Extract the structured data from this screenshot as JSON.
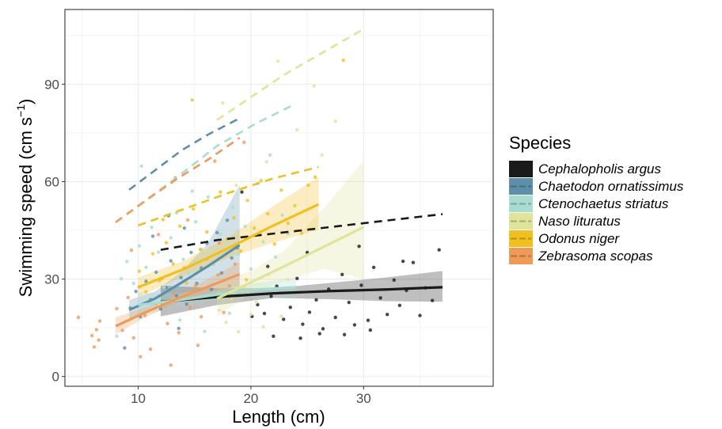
{
  "chart_data": {
    "type": "scatter",
    "xlabel": "Length (cm)",
    "ylabel": "Swimming speed (cm s",
    "ylabel_sup": "−1",
    "ylabel_close": ")",
    "xlim": [
      3.5,
      41.5
    ],
    "ylim": [
      -3,
      113
    ],
    "x_ticks": [
      10,
      20,
      30
    ],
    "y_ticks": [
      0,
      30,
      60,
      90
    ],
    "x_minor": [
      5,
      15,
      25,
      35
    ],
    "y_minor": [
      15,
      45,
      75,
      105
    ],
    "grid": true,
    "legend": {
      "title": "Species",
      "position": "right"
    },
    "series": [
      {
        "name": "Cephalopholis argus",
        "color": "#1a1a1a",
        "solid": [
          [
            12,
            23
          ],
          [
            17,
            24.5
          ],
          [
            22,
            25.6
          ],
          [
            27,
            26.3
          ],
          [
            32,
            26.8
          ],
          [
            37,
            27.5
          ]
        ],
        "band": [
          [
            12,
            18.5,
            28
          ],
          [
            17,
            22,
            27.2
          ],
          [
            22,
            24.2,
            27.2
          ],
          [
            27,
            23.8,
            28.8
          ],
          [
            32,
            23.2,
            30.5
          ],
          [
            37,
            23,
            32.5
          ]
        ],
        "dashed": [
          [
            12,
            39
          ],
          [
            17,
            42
          ],
          [
            22,
            44
          ],
          [
            27,
            46
          ],
          [
            32,
            48
          ],
          [
            37,
            50
          ]
        ],
        "points": [
          [
            20.1,
            18.5
          ],
          [
            20.6,
            22.1
          ],
          [
            21.2,
            19.4
          ],
          [
            21.8,
            24.7
          ],
          [
            22.3,
            27.8
          ],
          [
            22.9,
            17.6
          ],
          [
            23.5,
            21.3
          ],
          [
            24.1,
            30.2
          ],
          [
            24.6,
            16.1
          ],
          [
            25.2,
            19.8
          ],
          [
            25.8,
            23.6
          ],
          [
            26.4,
            14.7
          ],
          [
            26.9,
            26.9
          ],
          [
            27.5,
            18.2
          ],
          [
            28.1,
            31.4
          ],
          [
            28.7,
            22.8
          ],
          [
            29.2,
            15.9
          ],
          [
            29.8,
            28.1
          ],
          [
            30.4,
            17.3
          ],
          [
            30.9,
            33.6
          ],
          [
            31.5,
            24.2
          ],
          [
            32.1,
            19.1
          ],
          [
            32.7,
            29.7
          ],
          [
            33.2,
            21.9
          ],
          [
            33.8,
            26.5
          ],
          [
            34.4,
            35.1
          ],
          [
            35.0,
            18.8
          ],
          [
            35.5,
            27.3
          ],
          [
            36.1,
            23.4
          ],
          [
            36.7,
            39.0
          ],
          [
            22.0,
            12.4
          ],
          [
            24.4,
            11.8
          ],
          [
            26.1,
            13.2
          ],
          [
            28.3,
            12.9
          ],
          [
            30.6,
            14.3
          ],
          [
            19.2,
            56.8
          ],
          [
            21.5,
            33.9
          ],
          [
            25.0,
            38.2
          ],
          [
            29.6,
            40.1
          ],
          [
            33.5,
            35.5
          ]
        ]
      },
      {
        "name": "Chaetodon ornatissimus",
        "color": "#5e8fa8",
        "solid": [
          [
            9.2,
            20.5
          ],
          [
            11.5,
            24
          ],
          [
            13.8,
            28.8
          ],
          [
            16.2,
            34
          ],
          [
            19,
            40.5
          ]
        ],
        "band": [
          [
            9.2,
            17.5,
            23.6
          ],
          [
            11.5,
            21.8,
            26.2
          ],
          [
            13.8,
            25.5,
            32.2
          ],
          [
            16.2,
            27.2,
            41
          ],
          [
            19,
            24,
            59
          ]
        ],
        "dashed": [
          [
            9.2,
            57.5
          ],
          [
            11.5,
            63.5
          ],
          [
            13.8,
            69.5
          ],
          [
            16.2,
            74.5
          ],
          [
            19,
            79.5
          ]
        ],
        "points": [
          [
            9.3,
            21.1
          ],
          [
            9.8,
            26.2
          ],
          [
            10.2,
            18.4
          ],
          [
            10.7,
            29.3
          ],
          [
            11.1,
            23.7
          ],
          [
            11.6,
            32.1
          ],
          [
            12.0,
            20.8
          ],
          [
            12.5,
            27.4
          ],
          [
            12.9,
            35.6
          ],
          [
            13.4,
            24.9
          ],
          [
            13.8,
            30.5
          ],
          [
            14.3,
            22.3
          ],
          [
            14.7,
            38.2
          ],
          [
            15.2,
            28.7
          ],
          [
            15.6,
            33.4
          ],
          [
            16.1,
            41.0
          ],
          [
            16.5,
            26.8
          ],
          [
            17.0,
            44.3
          ],
          [
            17.4,
            31.9
          ],
          [
            17.9,
            48.1
          ],
          [
            18.3,
            36.5
          ],
          [
            18.8,
            39.6
          ],
          [
            11.3,
            43.2
          ],
          [
            12.7,
            49.5
          ],
          [
            13.6,
            14.8
          ],
          [
            8.8,
            8.8
          ],
          [
            14.1,
            45.7
          ]
        ]
      },
      {
        "name": "Ctenochaetus striatus",
        "color": "#a8dcd1",
        "solid": [
          [
            10,
            22
          ],
          [
            13.5,
            23.5
          ],
          [
            17,
            25.2
          ],
          [
            20.5,
            26.8
          ],
          [
            24,
            27.5
          ]
        ],
        "band": [
          [
            10,
            18.5,
            25.8
          ],
          [
            13.5,
            21.5,
            25.8
          ],
          [
            17,
            23.6,
            27
          ],
          [
            20.5,
            24.5,
            28.8
          ],
          [
            24,
            24.5,
            30.5
          ]
        ],
        "dashed": [
          [
            10,
            52.5
          ],
          [
            13.5,
            61.5
          ],
          [
            17,
            71
          ],
          [
            20.5,
            78
          ],
          [
            24,
            84
          ]
        ],
        "points": [
          [
            8.5,
            30.1
          ],
          [
            9.0,
            35.4
          ],
          [
            9.6,
            28.7
          ],
          [
            10.1,
            40.2
          ],
          [
            10.7,
            33.6
          ],
          [
            11.2,
            45.9
          ],
          [
            11.8,
            38.3
          ],
          [
            12.3,
            27.5
          ],
          [
            12.9,
            42.7
          ],
          [
            13.4,
            50.4
          ],
          [
            14.0,
            36.1
          ],
          [
            14.5,
            31.8
          ],
          [
            15.1,
            47.6
          ],
          [
            15.6,
            39.2
          ],
          [
            16.2,
            55.3
          ],
          [
            16.7,
            34.5
          ],
          [
            17.3,
            43.8
          ],
          [
            17.8,
            29.9
          ],
          [
            18.4,
            52.1
          ],
          [
            18.9,
            37.7
          ],
          [
            19.5,
            46.2
          ],
          [
            20.0,
            33.1
          ],
          [
            20.6,
            59.4
          ],
          [
            21.1,
            41.5
          ],
          [
            21.7,
            68.2
          ],
          [
            22.2,
            36.8
          ],
          [
            22.8,
            49.7
          ],
          [
            23.3,
            44.0
          ],
          [
            8.1,
            12.4
          ],
          [
            9.4,
            18.1
          ],
          [
            11.5,
            21.6
          ],
          [
            13.7,
            17.4
          ],
          [
            15.9,
            13.9
          ],
          [
            18.1,
            19.5
          ],
          [
            10.3,
            64.8
          ],
          [
            14.8,
            57.1
          ]
        ]
      },
      {
        "name": "Naso lituratus",
        "color": "#e0e49a",
        "solid": [
          [
            17,
            24
          ],
          [
            20,
            29
          ],
          [
            23,
            34
          ],
          [
            26.5,
            40
          ],
          [
            30,
            46
          ]
        ],
        "band": [
          [
            17,
            18.5,
            29
          ],
          [
            20,
            25.5,
            32.5
          ],
          [
            23,
            29.5,
            38.8
          ],
          [
            26.5,
            33.2,
            52
          ],
          [
            30,
            30,
            66.5
          ]
        ],
        "dashed": [
          [
            17,
            79
          ],
          [
            20,
            86
          ],
          [
            23,
            93
          ],
          [
            26.5,
            100
          ],
          [
            30,
            107
          ]
        ],
        "points": [
          [
            17.2,
            20.4
          ],
          [
            17.8,
            16.7
          ],
          [
            18.3,
            24.2
          ],
          [
            18.9,
            13.8
          ],
          [
            19.4,
            27.6
          ],
          [
            20.0,
            19.1
          ],
          [
            20.5,
            22.9
          ],
          [
            21.1,
            15.3
          ],
          [
            21.6,
            31.4
          ],
          [
            22.2,
            25.8
          ],
          [
            22.7,
            18.6
          ],
          [
            23.3,
            29.9
          ],
          [
            17.5,
            84.2
          ],
          [
            22.4,
            97.1
          ],
          [
            24.1,
            75.9
          ],
          [
            25.6,
            89.4
          ],
          [
            26.3,
            68.2
          ],
          [
            27.5,
            78.6
          ],
          [
            18.7,
            58.9
          ],
          [
            21.4,
            66.1
          ]
        ]
      },
      {
        "name": "Odonus niger",
        "color": "#f0c020",
        "solid": [
          [
            10,
            27.5
          ],
          [
            14,
            33
          ],
          [
            18,
            39.5
          ],
          [
            22,
            46.5
          ],
          [
            26,
            53
          ]
        ],
        "band": [
          [
            10,
            24.5,
            30.5
          ],
          [
            14,
            30.8,
            35.5
          ],
          [
            18,
            36.5,
            43
          ],
          [
            22,
            41.2,
            52.5
          ],
          [
            26,
            45.2,
            61.5
          ]
        ],
        "dashed": [
          [
            10,
            46.5
          ],
          [
            14,
            51.5
          ],
          [
            18,
            56.5
          ],
          [
            22,
            61
          ],
          [
            26,
            64.5
          ]
        ],
        "points": [
          [
            10.1,
            32.4
          ],
          [
            10.7,
            26.1
          ],
          [
            11.3,
            37.8
          ],
          [
            11.9,
            29.5
          ],
          [
            12.5,
            41.2
          ],
          [
            13.1,
            34.7
          ],
          [
            13.7,
            46.3
          ],
          [
            14.3,
            28.8
          ],
          [
            14.9,
            51.6
          ],
          [
            15.5,
            39.1
          ],
          [
            16.1,
            44.5
          ],
          [
            16.7,
            35.2
          ],
          [
            17.3,
            56.8
          ],
          [
            17.9,
            42.3
          ],
          [
            18.5,
            48.9
          ],
          [
            19.1,
            38.6
          ],
          [
            19.7,
            54.2
          ],
          [
            20.3,
            45.7
          ],
          [
            20.9,
            60.3
          ],
          [
            21.5,
            50.1
          ],
          [
            22.1,
            40.8
          ],
          [
            22.7,
            57.4
          ],
          [
            23.3,
            47.2
          ],
          [
            23.9,
            52.6
          ],
          [
            24.5,
            44.1
          ],
          [
            25.1,
            58.9
          ],
          [
            25.7,
            61.4
          ],
          [
            14.8,
            85.1
          ],
          [
            28.2,
            97.4
          ],
          [
            12.2,
            48.3
          ],
          [
            16.4,
            24.9
          ],
          [
            19.6,
            29.8
          ]
        ]
      },
      {
        "name": "Zebrasoma scopas",
        "color": "#f09a58",
        "solid": [
          [
            8,
            15.5
          ],
          [
            10.8,
            20
          ],
          [
            13.5,
            24
          ],
          [
            16.3,
            27.8
          ],
          [
            19,
            31.5
          ]
        ],
        "band": [
          [
            8,
            13,
            18.2
          ],
          [
            10.8,
            18.5,
            21.5
          ],
          [
            13.5,
            22.6,
            25.5
          ],
          [
            16.3,
            25.8,
            30.2
          ],
          [
            19,
            28,
            35.2
          ]
        ],
        "dashed": [
          [
            8,
            47.5
          ],
          [
            10.8,
            54.5
          ],
          [
            13.5,
            61
          ],
          [
            16.3,
            67
          ],
          [
            19,
            73.5
          ]
        ],
        "points": [
          [
            4.7,
            18.2
          ],
          [
            5.9,
            12.6
          ],
          [
            6.1,
            9.1
          ],
          [
            6.3,
            14.4
          ],
          [
            6.5,
            11.2
          ],
          [
            6.6,
            17.1
          ],
          [
            8.1,
            20.9
          ],
          [
            8.6,
            14.2
          ],
          [
            9.1,
            24.3
          ],
          [
            9.6,
            11.9
          ],
          [
            10.1,
            27.6
          ],
          [
            10.6,
            18.8
          ],
          [
            11.1,
            8.4
          ],
          [
            11.6,
            22.5
          ],
          [
            12.1,
            30.2
          ],
          [
            12.6,
            16.3
          ],
          [
            13.1,
            25.7
          ],
          [
            13.6,
            13.5
          ],
          [
            14.1,
            33.4
          ],
          [
            14.6,
            21.2
          ],
          [
            15.1,
            28.1
          ],
          [
            15.6,
            18.4
          ],
          [
            16.1,
            36.2
          ],
          [
            16.6,
            24.6
          ],
          [
            17.1,
            31.3
          ],
          [
            17.6,
            19.7
          ],
          [
            18.1,
            27.9
          ],
          [
            18.6,
            34.6
          ],
          [
            10.2,
            6.1
          ],
          [
            12.9,
            3.5
          ],
          [
            15.3,
            9.6
          ],
          [
            9.4,
            38.9
          ],
          [
            11.8,
            43.7
          ],
          [
            14.4,
            48.2
          ],
          [
            17.2,
            41.1
          ],
          [
            13.3,
            61.2
          ],
          [
            16.8,
            66.3
          ],
          [
            19.4,
            72.1
          ]
        ]
      }
    ]
  }
}
